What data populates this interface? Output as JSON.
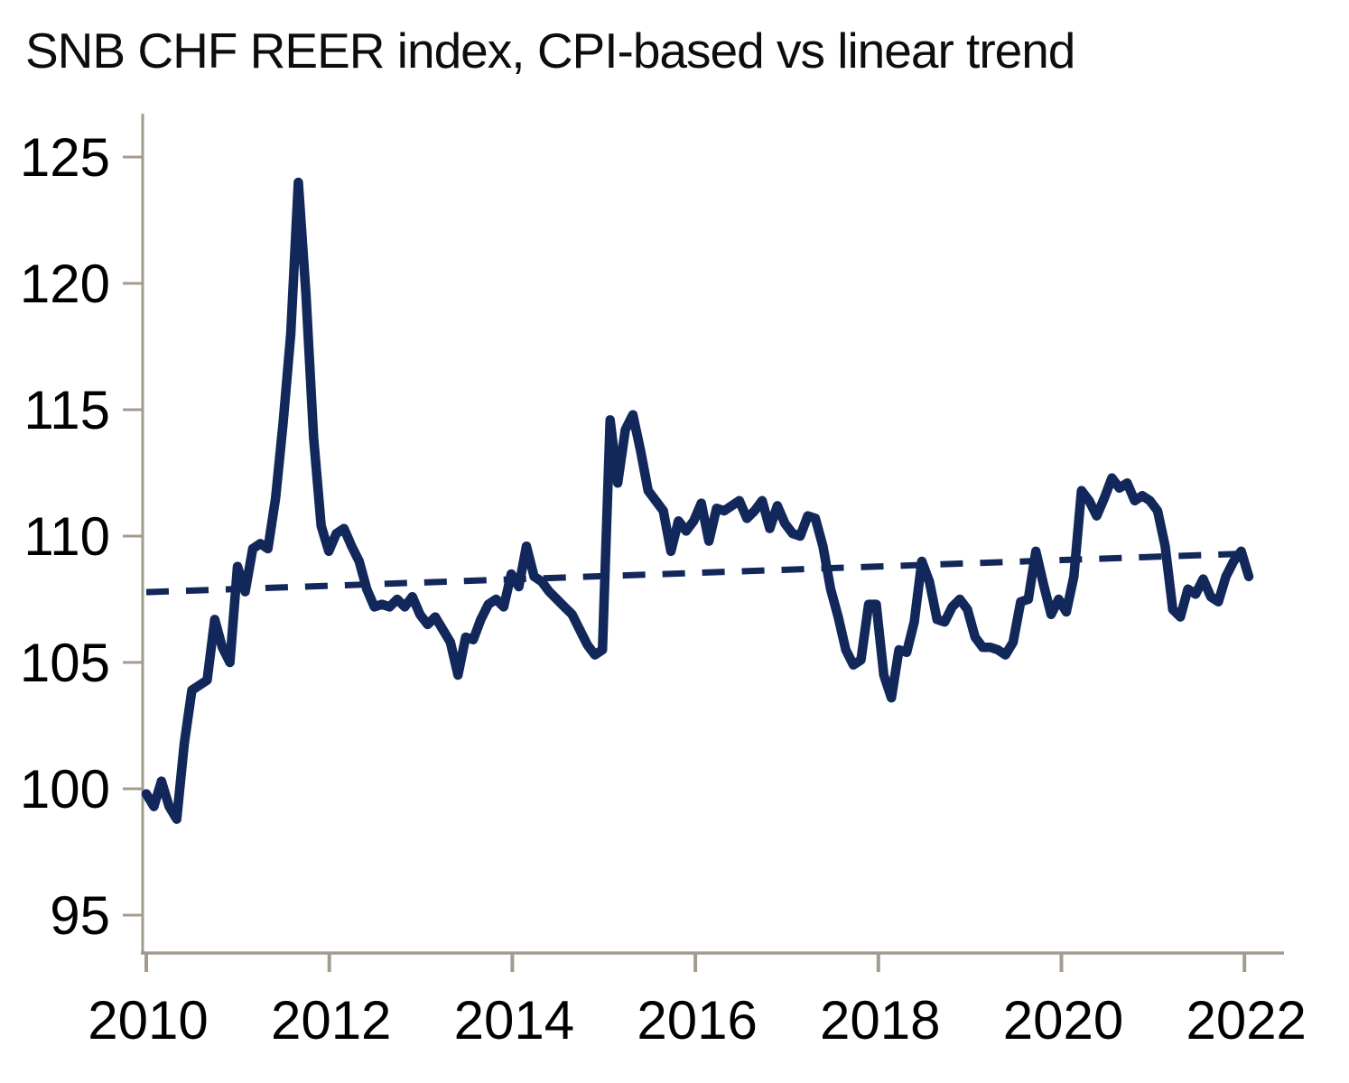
{
  "title": "SNB CHF REER index, CPI-based vs linear trend",
  "colors": {
    "line": "#12275a",
    "trend": "#12275a",
    "axis": "#a49b8f",
    "tick_label": "#000000",
    "title": "#0d0d0d",
    "background": "#ffffff"
  },
  "chart_data": {
    "type": "line",
    "title": "SNB CHF REER index, CPI-based vs linear trend",
    "xlabel": "",
    "ylabel": "",
    "x_tick_labels": [
      "2010",
      "2012",
      "2014",
      "2016",
      "2018",
      "2020",
      "2022"
    ],
    "y_tick_labels": [
      "95",
      "100",
      "105",
      "110",
      "115",
      "120",
      "125"
    ],
    "ylim": [
      95,
      125
    ],
    "grid": false,
    "legend_position": "none",
    "frequency": "monthly",
    "x_start": "2010-01",
    "x_end": "2022-02",
    "series": [
      {
        "name": "SNB CHF REER index, CPI-based",
        "style": "solid",
        "values": [
          99.8,
          99.3,
          100.3,
          99.3,
          98.8,
          101.8,
          103.9,
          104.1,
          104.3,
          106.7,
          105.6,
          105.0,
          108.8,
          107.8,
          109.5,
          109.7,
          109.5,
          111.5,
          114.5,
          118.0,
          124.0,
          119.6,
          113.9,
          110.4,
          109.4,
          110.1,
          110.3,
          109.6,
          109.0,
          107.9,
          107.2,
          107.3,
          107.2,
          107.5,
          107.2,
          107.6,
          106.9,
          106.5,
          106.8,
          106.3,
          105.8,
          104.5,
          106.0,
          105.9,
          106.7,
          107.3,
          107.5,
          107.2,
          108.5,
          108.0,
          109.6,
          108.4,
          108.2,
          107.8,
          107.5,
          107.2,
          106.9,
          106.3,
          105.7,
          105.3,
          105.5,
          114.6,
          112.1,
          114.2,
          114.8,
          113.4,
          111.8,
          111.4,
          111.0,
          109.4,
          110.6,
          110.2,
          110.6,
          111.3,
          109.8,
          111.1,
          111.0,
          111.2,
          111.4,
          110.7,
          111.0,
          111.4,
          110.3,
          111.2,
          110.5,
          110.1,
          110.0,
          110.8,
          110.7,
          109.6,
          107.9,
          106.8,
          105.5,
          104.9,
          105.1,
          107.3,
          107.3,
          104.5,
          103.6,
          105.5,
          105.4,
          106.6,
          109.0,
          108.2,
          106.7,
          106.6,
          107.2,
          107.5,
          107.1,
          106.0,
          105.6,
          105.6,
          105.5,
          105.3,
          105.8,
          107.4,
          107.5,
          109.4,
          108.1,
          106.9,
          107.5,
          107.0,
          108.4,
          111.8,
          111.4,
          110.8,
          111.5,
          112.3,
          111.9,
          112.1,
          111.4,
          111.6,
          111.4,
          111.0,
          109.6,
          107.1,
          106.8,
          107.9,
          107.7,
          108.3,
          107.6,
          107.4,
          108.4,
          109.0,
          109.4,
          108.4
        ]
      },
      {
        "name": "linear trend",
        "style": "dashed",
        "trend_start_value": 107.78,
        "trend_end_value": 109.32
      }
    ]
  }
}
